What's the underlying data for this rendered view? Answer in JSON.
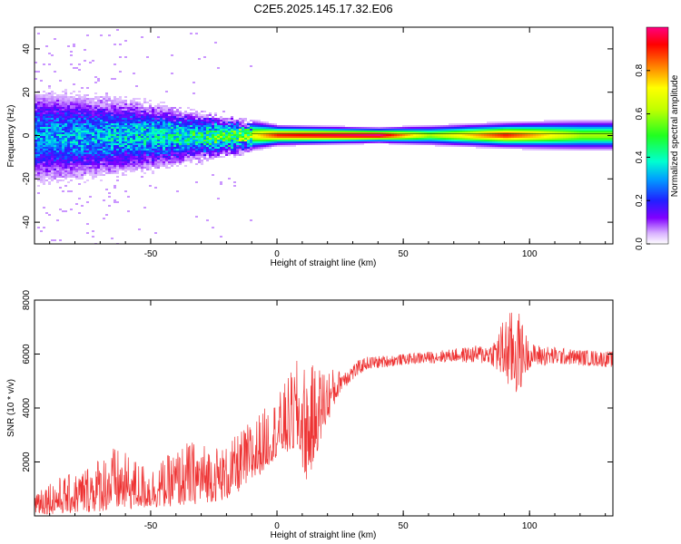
{
  "title": "C2E5.2025.145.17.32.E06",
  "chart_data": [
    {
      "type": "heatmap",
      "xlabel": "Height of straight line (km)",
      "ylabel": "Frequency (Hz)",
      "xlim": [
        -96,
        133
      ],
      "ylim": [
        -50,
        50
      ],
      "xticks": [
        -50,
        0,
        50,
        100
      ],
      "yticks": [
        -40,
        -20,
        0,
        20,
        40
      ],
      "colorbar": {
        "label": "Normalized spectral amplitude",
        "range": [
          0,
          1
        ],
        "ticks": [
          "0.0",
          "0.2",
          "0.4",
          "0.6",
          "0.8"
        ]
      },
      "description_points": [
        {
          "x": -90,
          "spread": 10,
          "peak": 0.35
        },
        {
          "x": -60,
          "spread": 8,
          "peak": 0.4
        },
        {
          "x": -30,
          "spread": 5,
          "peak": 0.5
        },
        {
          "x": -10,
          "spread": 3,
          "peak": 0.7
        },
        {
          "x": 0,
          "spread": 2,
          "peak": 0.9
        },
        {
          "x": 40,
          "spread": 1.5,
          "peak": 1.0
        },
        {
          "x": 60,
          "spread": 2,
          "peak": 0.6
        },
        {
          "x": 90,
          "spread": 2.5,
          "peak": 0.9
        },
        {
          "x": 120,
          "spread": 3,
          "peak": 0.6
        }
      ]
    },
    {
      "type": "line",
      "xlabel": "Height of straight line (km)",
      "ylabel": "SNR (10 * v/v)",
      "xlim": [
        -96,
        133
      ],
      "ylim": [
        0,
        8000
      ],
      "xticks": [
        -50,
        0,
        50,
        100
      ],
      "yticks": [
        2000,
        4000,
        6000,
        8000
      ],
      "color": "#ee3333",
      "envelope": [
        {
          "x": -96,
          "low": 50,
          "high": 1200
        },
        {
          "x": -80,
          "low": 100,
          "high": 1600
        },
        {
          "x": -65,
          "low": 200,
          "high": 2600
        },
        {
          "x": -50,
          "low": 300,
          "high": 1800
        },
        {
          "x": -35,
          "low": 400,
          "high": 2800
        },
        {
          "x": -20,
          "low": 600,
          "high": 2600
        },
        {
          "x": -10,
          "low": 1200,
          "high": 3600
        },
        {
          "x": 0,
          "low": 2200,
          "high": 4400
        },
        {
          "x": 8,
          "low": 2400,
          "high": 5800
        },
        {
          "x": 12,
          "low": 1200,
          "high": 5600
        },
        {
          "x": 18,
          "low": 3000,
          "high": 5600
        },
        {
          "x": 25,
          "low": 4600,
          "high": 5400
        },
        {
          "x": 35,
          "low": 5400,
          "high": 5900
        },
        {
          "x": 50,
          "low": 5600,
          "high": 6000
        },
        {
          "x": 70,
          "low": 5700,
          "high": 6200
        },
        {
          "x": 85,
          "low": 5600,
          "high": 6400
        },
        {
          "x": 90,
          "low": 4800,
          "high": 7400
        },
        {
          "x": 95,
          "low": 4300,
          "high": 7800
        },
        {
          "x": 100,
          "low": 5500,
          "high": 6400
        },
        {
          "x": 115,
          "low": 5600,
          "high": 6200
        },
        {
          "x": 133,
          "low": 5500,
          "high": 6100
        }
      ]
    }
  ]
}
